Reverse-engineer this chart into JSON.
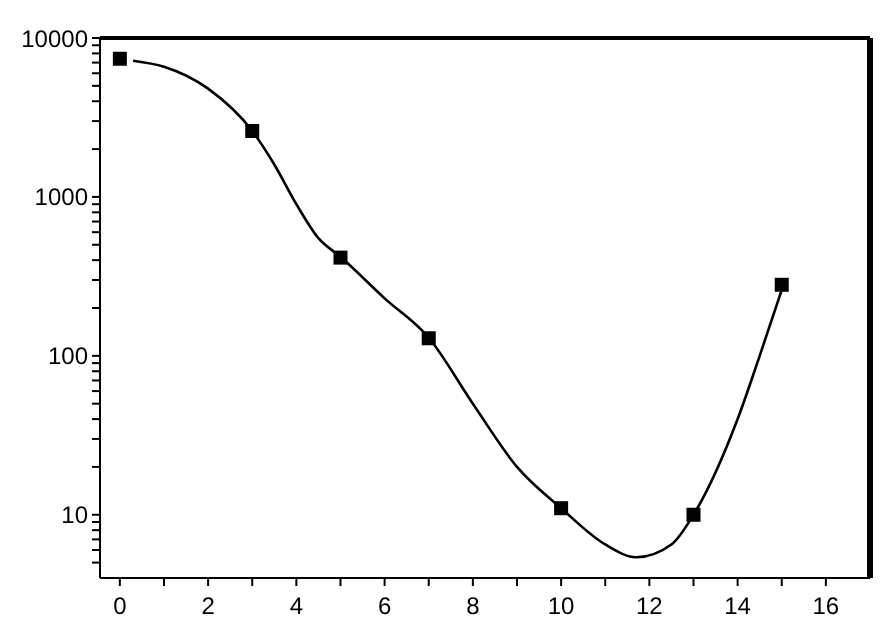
{
  "chart_data": {
    "type": "scatter",
    "log": "y",
    "marker": "square",
    "xlim": [
      -0.45,
      17
    ],
    "ylim": [
      4,
      10000
    ],
    "xticks": [
      0,
      {
        "value": 1,
        "label": null
      },
      2,
      {
        "value": 3,
        "label": null
      },
      4,
      {
        "value": 5,
        "label": null
      },
      6,
      {
        "value": 7,
        "label": null
      },
      8,
      {
        "value": 9,
        "label": null
      },
      10,
      {
        "value": 11,
        "label": null
      },
      12,
      {
        "value": 13,
        "label": null
      },
      14,
      {
        "value": 15,
        "label": null
      },
      16
    ],
    "yticks": [
      {
        "value": 5,
        "label": null
      },
      {
        "value": 6,
        "label": null
      },
      {
        "value": 7,
        "label": null
      },
      {
        "value": 8,
        "label": null
      },
      {
        "value": 9,
        "label": null
      },
      10,
      {
        "value": 20,
        "label": null
      },
      {
        "value": 30,
        "label": null
      },
      {
        "value": 40,
        "label": null
      },
      {
        "value": 50,
        "label": null
      },
      {
        "value": 60,
        "label": null
      },
      {
        "value": 70,
        "label": null
      },
      {
        "value": 80,
        "label": null
      },
      {
        "value": 90,
        "label": null
      },
      100,
      {
        "value": 200,
        "label": null
      },
      {
        "value": 300,
        "label": null
      },
      {
        "value": 400,
        "label": null
      },
      {
        "value": 500,
        "label": null
      },
      {
        "value": 600,
        "label": null
      },
      {
        "value": 700,
        "label": null
      },
      {
        "value": 800,
        "label": null
      },
      {
        "value": 900,
        "label": null
      },
      1000,
      {
        "value": 2000,
        "label": null
      },
      {
        "value": 3000,
        "label": null
      },
      {
        "value": 4000,
        "label": null
      },
      {
        "value": 5000,
        "label": null
      },
      {
        "value": 6000,
        "label": null
      },
      {
        "value": 7000,
        "label": null
      },
      {
        "value": 8000,
        "label": null
      },
      {
        "value": 9000,
        "label": null
      },
      10000
    ],
    "series": [
      {
        "color": "#000000",
        "x": [
          0,
          3,
          5,
          7,
          10,
          13,
          15
        ],
        "values": [
          7400,
          2600,
          415,
          129,
          11,
          10,
          280
        ]
      },
      {
        "type": "line",
        "color": "#000000",
        "marker": "none",
        "line_style": "solid",
        "x": [
          0.3,
          1,
          2,
          3,
          3.5,
          4,
          4.5,
          5,
          6,
          7,
          8,
          9,
          10,
          11,
          11.7,
          12.5,
          13,
          14,
          14.5,
          15
        ],
        "values": [
          7200,
          6600,
          4800,
          2600,
          1600,
          900,
          550,
          420,
          230,
          130,
          50,
          20,
          11,
          6.5,
          5.4,
          6.5,
          10,
          40,
          100,
          260
        ]
      }
    ]
  }
}
